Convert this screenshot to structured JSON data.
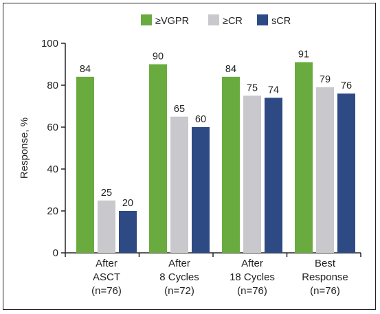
{
  "chart_data": {
    "type": "bar",
    "ylabel": "Response, %",
    "ylim": [
      0,
      100
    ],
    "yticks": [
      0,
      20,
      40,
      60,
      80,
      100
    ],
    "grid": false,
    "legend_position": "top",
    "categories": [
      [
        "After",
        "ASCT",
        "(n=76)"
      ],
      [
        "After",
        "8 Cycles",
        "(n=72)"
      ],
      [
        "After",
        "18 Cycles",
        "(n=76)"
      ],
      [
        "Best",
        "Response",
        "(n=76)"
      ]
    ],
    "series": [
      {
        "name": "≥VGPR",
        "color": "#6aab3f",
        "values": [
          84,
          90,
          84,
          91
        ]
      },
      {
        "name": "≥CR",
        "color": "#c9c8cd",
        "values": [
          25,
          65,
          75,
          79
        ]
      },
      {
        "name": "sCR",
        "color": "#2d4a85",
        "values": [
          20,
          60,
          74,
          76
        ]
      }
    ]
  }
}
